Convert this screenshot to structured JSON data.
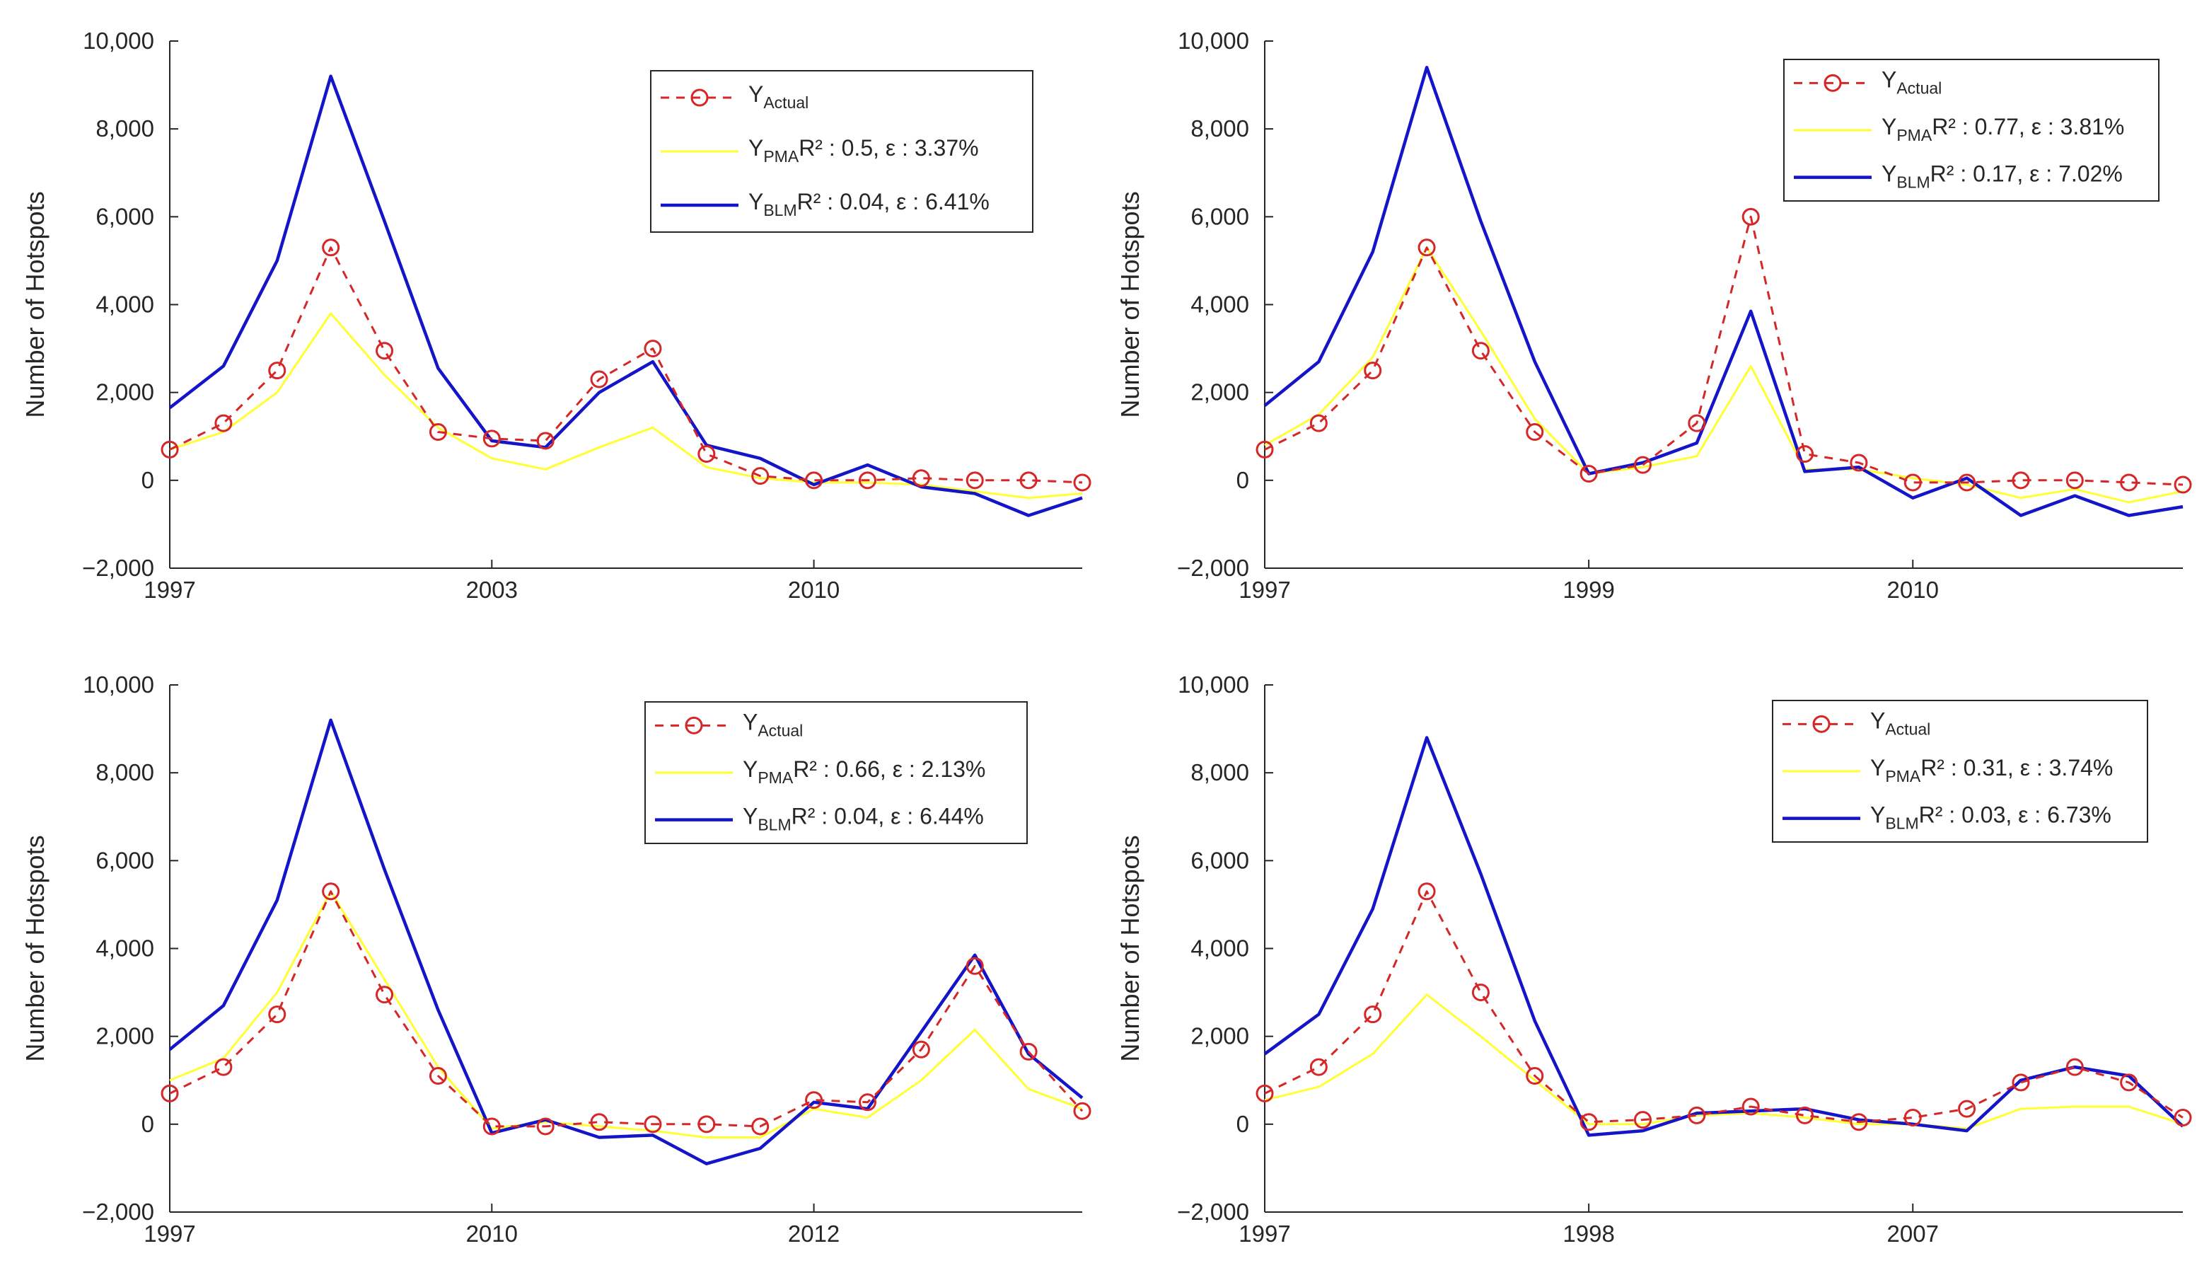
{
  "colors": {
    "actual": "#d62728",
    "pma": "#ffff33",
    "blm": "#1414c8",
    "axis": "#262626",
    "background": "#ffffff"
  },
  "chart_data": [
    {
      "type": "line",
      "ylabel": "Number of Hotspots",
      "ylim": [
        -2000,
        10000
      ],
      "yticks": [
        -2000,
        0,
        2000,
        4000,
        6000,
        8000,
        10000
      ],
      "ytick_labels": [
        "−2,000",
        "0",
        "2,000",
        "4,000",
        "6,000",
        "8,000",
        "10,000"
      ],
      "xtick_labels": [
        "1997",
        "2003",
        "2010"
      ],
      "xtick_positions": [
        1,
        7,
        13
      ],
      "x": [
        1,
        2,
        3,
        4,
        5,
        6,
        7,
        8,
        9,
        10,
        11,
        12,
        13,
        14,
        15,
        16,
        17,
        18
      ],
      "legend_position": "top-right",
      "series": [
        {
          "name": "Y",
          "name_sub": "Actual",
          "values": [
            700,
            1300,
            2500,
            5300,
            2950,
            1100,
            950,
            900,
            2300,
            3000,
            600,
            100,
            0,
            0,
            50,
            0,
            0,
            -50
          ]
        },
        {
          "name": "Y",
          "name_sub": "PMA",
          "stats": "R² : 0.5, ε : 3.37%",
          "values": [
            700,
            1100,
            2000,
            3800,
            2400,
            1200,
            500,
            250,
            750,
            1200,
            300,
            50,
            -50,
            -50,
            -100,
            -250,
            -400,
            -300
          ]
        },
        {
          "name": "Y",
          "name_sub": "BLM",
          "stats": "R² : 0.04, ε : 6.41%",
          "values": [
            1650,
            2600,
            5000,
            9200,
            5900,
            2550,
            900,
            750,
            2000,
            2700,
            800,
            500,
            -100,
            350,
            -150,
            -300,
            -800,
            -400
          ]
        }
      ]
    },
    {
      "type": "line",
      "ylabel": "Number of Hotspots",
      "ylim": [
        -2000,
        10000
      ],
      "yticks": [
        -2000,
        0,
        2000,
        4000,
        6000,
        8000,
        10000
      ],
      "ytick_labels": [
        "−2,000",
        "0",
        "2,000",
        "4,000",
        "6,000",
        "8,000",
        "10,000"
      ],
      "xtick_labels": [
        "1997",
        "1999",
        "2010"
      ],
      "xtick_positions": [
        1,
        7,
        13
      ],
      "x": [
        1,
        2,
        3,
        4,
        5,
        6,
        7,
        8,
        9,
        10,
        11,
        12,
        13,
        14,
        15,
        16,
        17,
        18
      ],
      "legend_position": "top-right",
      "series": [
        {
          "name": "Y",
          "name_sub": "Actual",
          "values": [
            700,
            1300,
            2500,
            5300,
            2950,
            1100,
            150,
            350,
            1300,
            6000,
            600,
            400,
            -50,
            -50,
            0,
            0,
            -50,
            -100
          ]
        },
        {
          "name": "Y",
          "name_sub": "PMA",
          "stats": "R² : 0.77, ε : 3.81%",
          "values": [
            800,
            1500,
            2800,
            5300,
            3400,
            1400,
            150,
            300,
            550,
            2600,
            250,
            250,
            50,
            -100,
            -400,
            -200,
            -500,
            -250
          ]
        },
        {
          "name": "Y",
          "name_sub": "BLM",
          "stats": "R² : 0.17, ε : 7.02%",
          "values": [
            1700,
            2700,
            5200,
            9400,
            5900,
            2700,
            150,
            400,
            850,
            3850,
            200,
            300,
            -400,
            50,
            -800,
            -350,
            -800,
            -600
          ]
        }
      ]
    },
    {
      "type": "line",
      "ylabel": "Number of Hotspots",
      "ylim": [
        -2000,
        10000
      ],
      "yticks": [
        -2000,
        0,
        2000,
        4000,
        6000,
        8000,
        10000
      ],
      "ytick_labels": [
        "−2,000",
        "0",
        "2,000",
        "4,000",
        "6,000",
        "8,000",
        "10,000"
      ],
      "xtick_labels": [
        "1997",
        "2010",
        "2012"
      ],
      "xtick_positions": [
        1,
        7,
        13
      ],
      "x": [
        1,
        2,
        3,
        4,
        5,
        6,
        7,
        8,
        9,
        10,
        11,
        12,
        13,
        14,
        15,
        16,
        17,
        18
      ],
      "legend_position": "top-right",
      "series": [
        {
          "name": "Y",
          "name_sub": "Actual",
          "values": [
            700,
            1300,
            2500,
            5300,
            2950,
            1100,
            -50,
            -50,
            50,
            0,
            0,
            -50,
            550,
            500,
            1700,
            3600,
            1650,
            300
          ]
        },
        {
          "name": "Y",
          "name_sub": "PMA",
          "stats": "R² : 0.66, ε : 2.13%",
          "values": [
            1000,
            1500,
            3000,
            5300,
            3300,
            1300,
            -100,
            50,
            -50,
            -150,
            -300,
            -300,
            350,
            150,
            1000,
            2150,
            800,
            350
          ]
        },
        {
          "name": "Y",
          "name_sub": "BLM",
          "stats": "R² : 0.04, ε : 6.44%",
          "values": [
            1700,
            2700,
            5100,
            9200,
            5800,
            2600,
            -200,
            100,
            -300,
            -250,
            -900,
            -550,
            500,
            350,
            2100,
            3850,
            1600,
            600
          ]
        }
      ]
    },
    {
      "type": "line",
      "ylabel": "Number of Hotspots",
      "ylim": [
        -2000,
        10000
      ],
      "yticks": [
        -2000,
        0,
        2000,
        4000,
        6000,
        8000,
        10000
      ],
      "ytick_labels": [
        "−2,000",
        "0",
        "2,000",
        "4,000",
        "6,000",
        "8,000",
        "10,000"
      ],
      "xtick_labels": [
        "1997",
        "1998",
        "2007"
      ],
      "xtick_positions": [
        1,
        7,
        13
      ],
      "x": [
        1,
        2,
        3,
        4,
        5,
        6,
        7,
        8,
        9,
        10,
        11,
        12,
        13,
        14,
        15,
        16,
        17,
        18
      ],
      "legend_position": "top-right",
      "series": [
        {
          "name": "Y",
          "name_sub": "Actual",
          "values": [
            700,
            1300,
            2500,
            5300,
            3000,
            1100,
            50,
            100,
            200,
            400,
            200,
            50,
            150,
            350,
            950,
            1300,
            950,
            150
          ]
        },
        {
          "name": "Y",
          "name_sub": "PMA",
          "stats": "R² : 0.31, ε : 3.74%",
          "values": [
            550,
            850,
            1600,
            2950,
            2000,
            1000,
            0,
            0,
            200,
            250,
            150,
            0,
            0,
            -100,
            350,
            400,
            400,
            0
          ]
        },
        {
          "name": "Y",
          "name_sub": "BLM",
          "stats": "R² : 0.03, ε : 6.73%",
          "values": [
            1600,
            2500,
            4900,
            8800,
            5700,
            2350,
            -250,
            -150,
            250,
            300,
            350,
            100,
            0,
            -150,
            1000,
            1300,
            1100,
            -50
          ]
        }
      ]
    }
  ]
}
